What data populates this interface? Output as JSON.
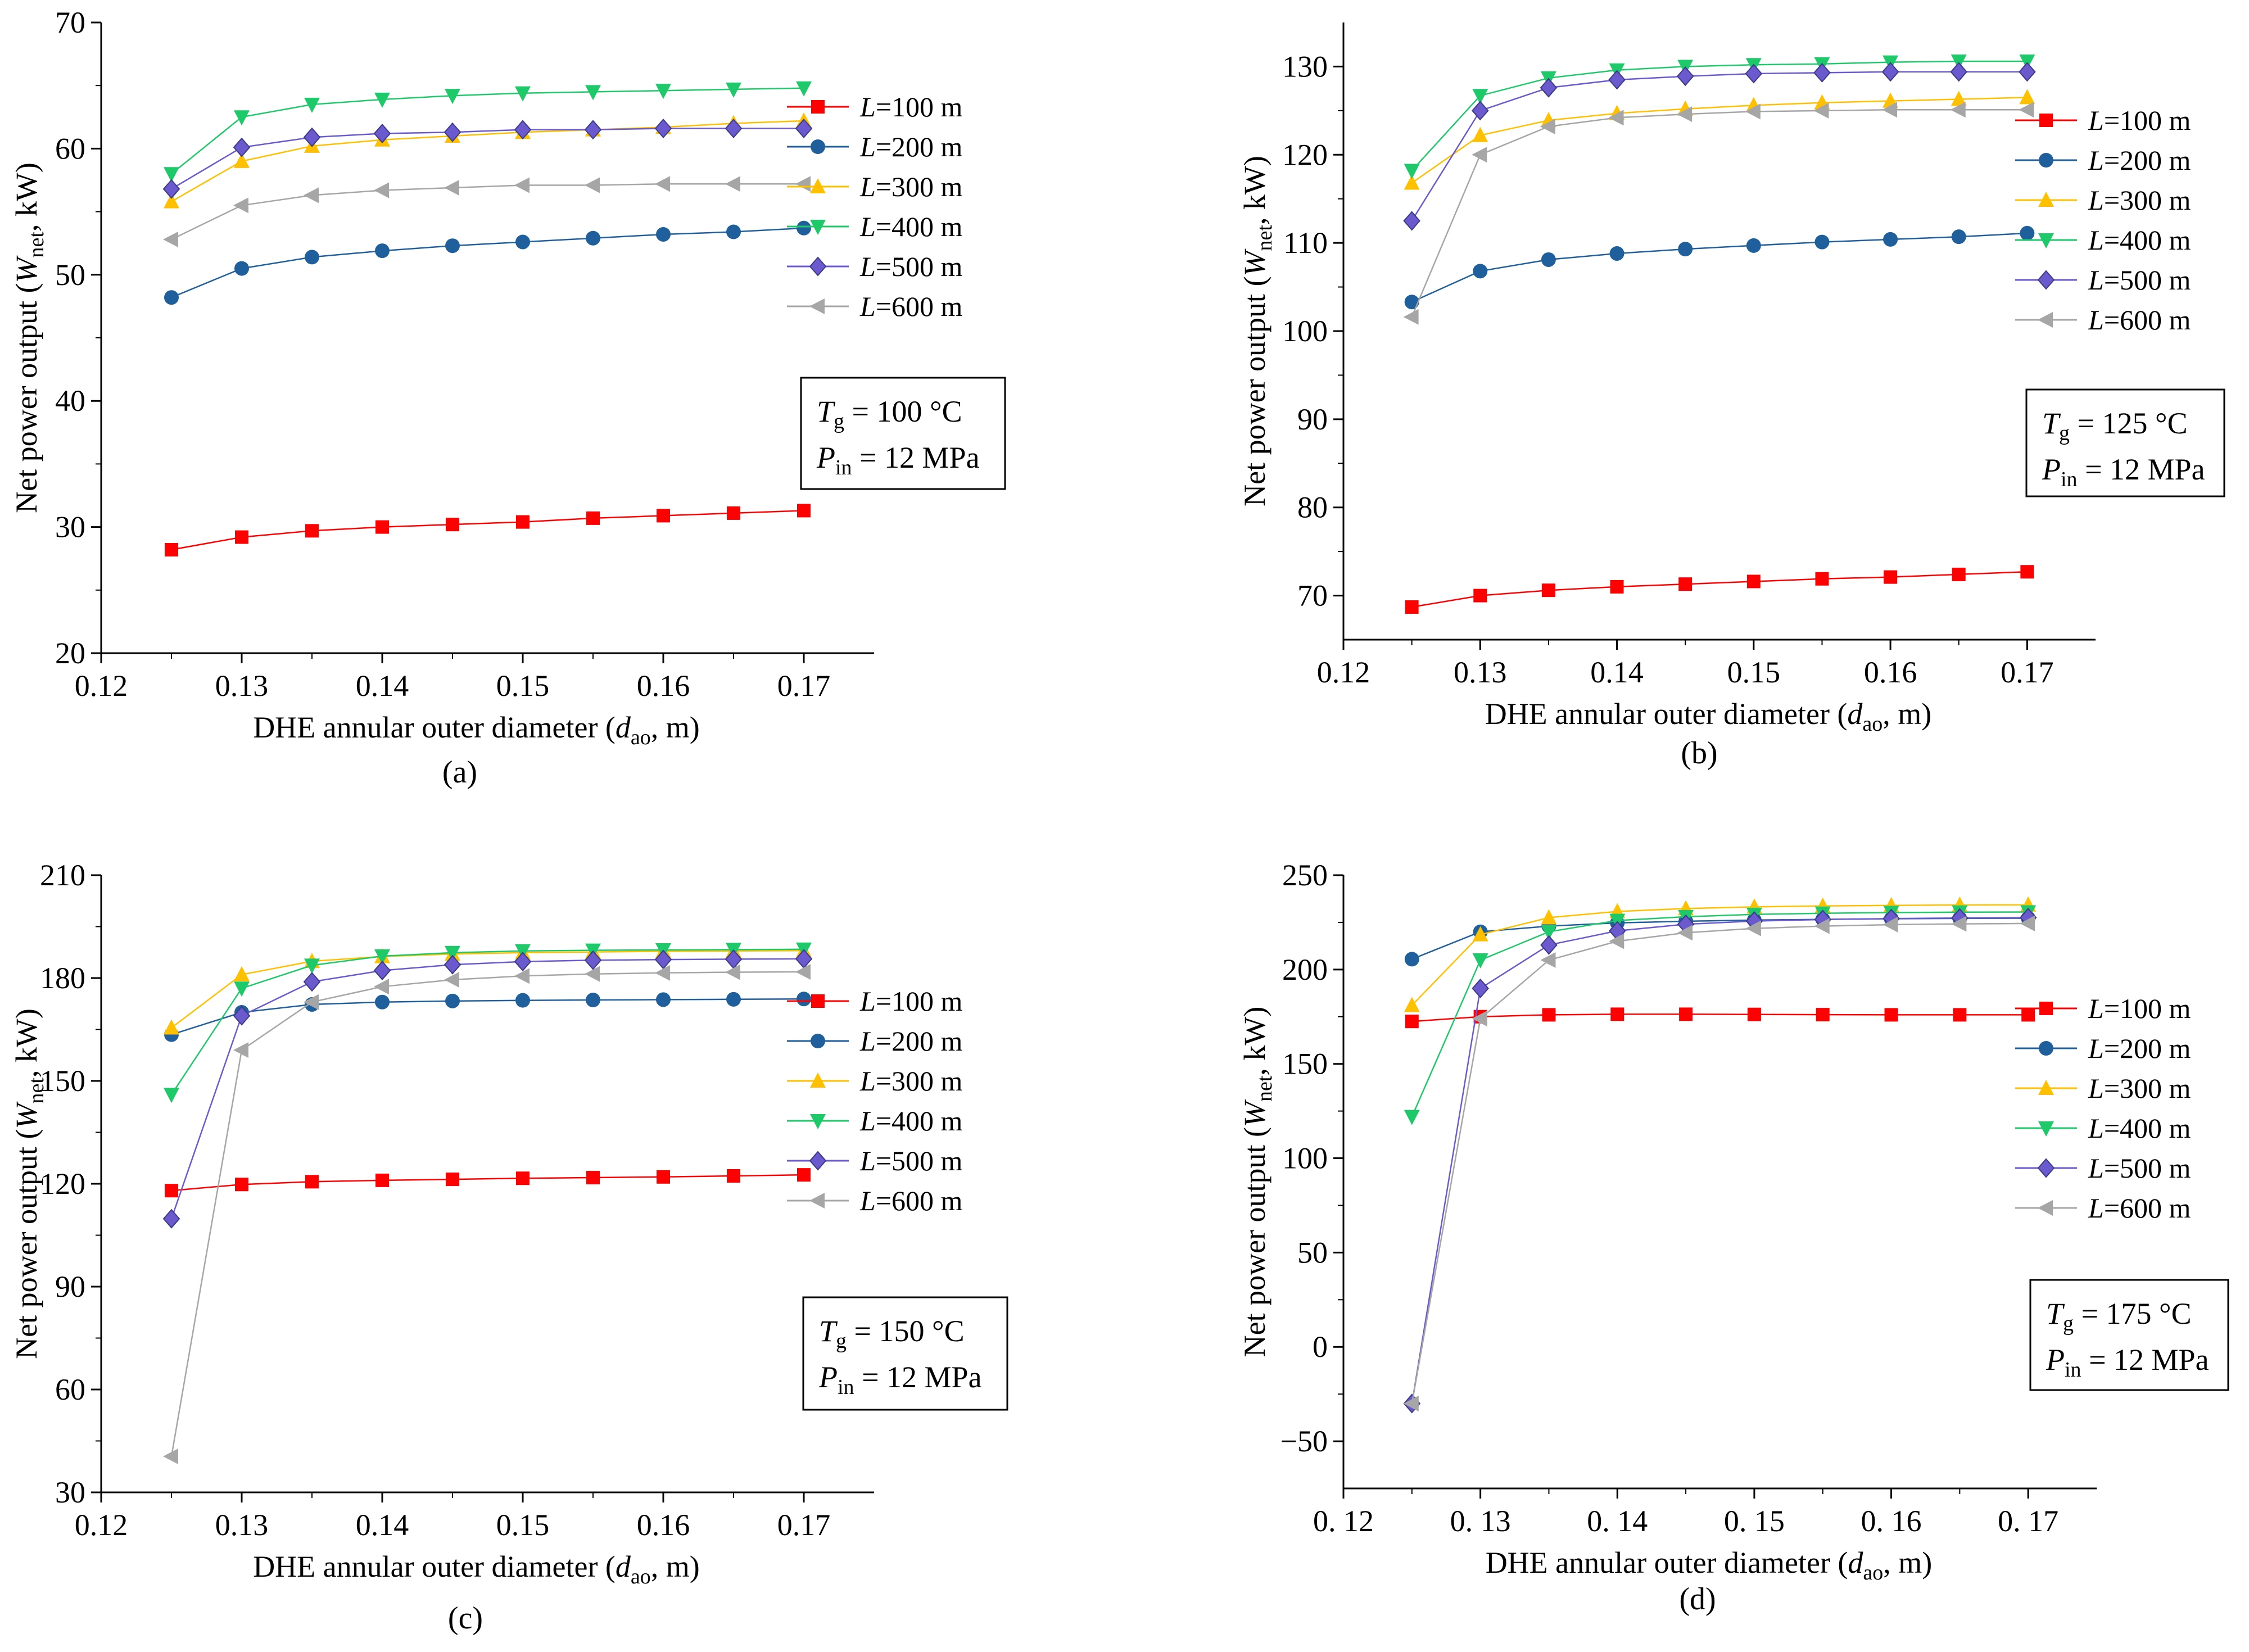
{
  "figure": {
    "panel_labels": [
      "(a)",
      "(b)",
      "(c)",
      "(d)"
    ]
  },
  "legend_labels": [
    {
      "var": "L",
      "rest": "=100 m"
    },
    {
      "var": "L",
      "rest": "=200 m"
    },
    {
      "var": "L",
      "rest": "=300 m"
    },
    {
      "var": "L",
      "rest": "=400 m"
    },
    {
      "var": "L",
      "rest": "=500 m"
    },
    {
      "var": "L",
      "rest": "=600 m"
    }
  ],
  "axis_titles": {
    "x": {
      "pre": "DHE annular outer diameter (",
      "var": "d",
      "sub": "ao",
      "post": ", m)"
    },
    "y": {
      "pre": "Net power output (",
      "var": "W",
      "sub": "net",
      "post": ", kW)"
    }
  },
  "chart_data": [
    {
      "type": "line",
      "panel": "(a)",
      "title": "",
      "condition": {
        "tg": {
          "var": "T",
          "sub": "g",
          "text": " = 100 °C"
        },
        "pin": {
          "var": "P",
          "sub": "in",
          "text": " = 12 MPa"
        }
      },
      "xlim": [
        0.12,
        0.175
      ],
      "ylim": [
        20,
        70
      ],
      "xticks": [
        0.12,
        0.13,
        0.14,
        0.15,
        0.16,
        0.17
      ],
      "xtick_labels": [
        "0.12",
        "0.13",
        "0.14",
        "0.15",
        "0.16",
        "0.17"
      ],
      "yticks": [
        20,
        30,
        40,
        50,
        60,
        70
      ],
      "ytick_labels": [
        "20",
        "30",
        "40",
        "50",
        "60",
        "70"
      ],
      "x": [
        0.125,
        0.13,
        0.135,
        0.14,
        0.145,
        0.15,
        0.155,
        0.16,
        0.165,
        0.17
      ],
      "series": [
        {
          "name": "L=100 m",
          "color": "#ff0000",
          "marker": "square",
          "values": [
            28.2,
            29.2,
            29.7,
            30.0,
            30.2,
            30.4,
            30.7,
            30.9,
            31.1,
            31.3
          ]
        },
        {
          "name": "L=200 m",
          "color": "#1f5f9c",
          "marker": "circle",
          "values": [
            48.2,
            50.5,
            51.4,
            51.9,
            52.3,
            52.6,
            52.9,
            53.2,
            53.4,
            53.7
          ]
        },
        {
          "name": "L=300 m",
          "color": "#ffc000",
          "marker": "triangle-up",
          "values": [
            55.8,
            59.0,
            60.2,
            60.7,
            61.0,
            61.3,
            61.5,
            61.7,
            62.0,
            62.2
          ]
        },
        {
          "name": "L=400 m",
          "color": "#1ec96a",
          "marker": "triangle-down",
          "values": [
            58.0,
            62.5,
            63.5,
            63.9,
            64.2,
            64.4,
            64.5,
            64.6,
            64.7,
            64.8
          ]
        },
        {
          "name": "L=500 m",
          "color": "#6a5acd",
          "marker": "diamond",
          "values": [
            56.8,
            60.1,
            60.9,
            61.2,
            61.3,
            61.5,
            61.5,
            61.6,
            61.6,
            61.6
          ]
        },
        {
          "name": "L=600 m",
          "color": "#a6a6a6",
          "marker": "triangle-left",
          "values": [
            52.8,
            55.5,
            56.3,
            56.7,
            56.9,
            57.1,
            57.1,
            57.2,
            57.2,
            57.2
          ]
        }
      ]
    },
    {
      "type": "line",
      "panel": "(b)",
      "title": "",
      "condition": {
        "tg": {
          "var": "T",
          "sub": "g",
          "text": " = 125 °C"
        },
        "pin": {
          "var": "P",
          "sub": "in",
          "text": " = 12 MPa"
        }
      },
      "xlim": [
        0.12,
        0.175
      ],
      "ylim": [
        65,
        135
      ],
      "xticks": [
        0.12,
        0.13,
        0.14,
        0.15,
        0.16,
        0.17
      ],
      "xtick_labels": [
        "0.12",
        "0.13",
        "0.14",
        "0.15",
        "0.16",
        "0.17"
      ],
      "yticks": [
        70,
        80,
        90,
        100,
        110,
        120,
        130
      ],
      "ytick_labels": [
        "70",
        "80",
        "90",
        "100",
        "110",
        "120",
        "130"
      ],
      "x": [
        0.125,
        0.13,
        0.135,
        0.14,
        0.145,
        0.15,
        0.155,
        0.16,
        0.165,
        0.17
      ],
      "series": [
        {
          "name": "L=100 m",
          "color": "#ff0000",
          "marker": "square",
          "values": [
            68.7,
            70.0,
            70.6,
            71.0,
            71.3,
            71.6,
            71.9,
            72.1,
            72.4,
            72.7
          ]
        },
        {
          "name": "L=200 m",
          "color": "#1f5f9c",
          "marker": "circle",
          "values": [
            103.3,
            106.8,
            108.1,
            108.8,
            109.3,
            109.7,
            110.1,
            110.4,
            110.7,
            111.1
          ]
        },
        {
          "name": "L=300 m",
          "color": "#ffc000",
          "marker": "triangle-up",
          "values": [
            116.8,
            122.2,
            123.9,
            124.7,
            125.2,
            125.6,
            125.9,
            126.1,
            126.3,
            126.5
          ]
        },
        {
          "name": "L=400 m",
          "color": "#1ec96a",
          "marker": "triangle-down",
          "values": [
            118.2,
            126.7,
            128.7,
            129.6,
            130.0,
            130.2,
            130.3,
            130.5,
            130.6,
            130.6
          ]
        },
        {
          "name": "L=500 m",
          "color": "#6a5acd",
          "marker": "diamond",
          "values": [
            112.5,
            125.0,
            127.6,
            128.5,
            128.9,
            129.2,
            129.3,
            129.4,
            129.4,
            129.4
          ]
        },
        {
          "name": "L=600 m",
          "color": "#a6a6a6",
          "marker": "triangle-left",
          "values": [
            101.6,
            120.0,
            123.2,
            124.2,
            124.6,
            124.9,
            125.0,
            125.1,
            125.1,
            125.1
          ]
        }
      ]
    },
    {
      "type": "line",
      "panel": "(c)",
      "title": "",
      "condition": {
        "tg": {
          "var": "T",
          "sub": "g",
          "text": " = 150 °C"
        },
        "pin": {
          "var": "P",
          "sub": "in",
          "text": " = 12 MPa"
        }
      },
      "xlim": [
        0.12,
        0.175
      ],
      "ylim": [
        30,
        210
      ],
      "xticks": [
        0.12,
        0.13,
        0.14,
        0.15,
        0.16,
        0.17
      ],
      "xtick_labels": [
        "0.12",
        "0.13",
        "0.14",
        "0.15",
        "0.16",
        "0.17"
      ],
      "yticks": [
        30,
        60,
        90,
        120,
        150,
        180,
        210
      ],
      "ytick_labels": [
        "30",
        "60",
        "90",
        "120",
        "150",
        "180",
        "210"
      ],
      "x": [
        0.125,
        0.13,
        0.135,
        0.14,
        0.145,
        0.15,
        0.155,
        0.16,
        0.165,
        0.17
      ],
      "series": [
        {
          "name": "L=100 m",
          "color": "#ff0000",
          "marker": "square",
          "values": [
            118.0,
            119.8,
            120.6,
            121.0,
            121.3,
            121.6,
            121.8,
            122.0,
            122.3,
            122.6
          ]
        },
        {
          "name": "L=200 m",
          "color": "#1f5f9c",
          "marker": "circle",
          "values": [
            163.5,
            170.0,
            172.3,
            173.0,
            173.3,
            173.5,
            173.6,
            173.7,
            173.8,
            173.9
          ]
        },
        {
          "name": "L=300 m",
          "color": "#ffc000",
          "marker": "triangle-up",
          "values": [
            165.5,
            181.0,
            184.9,
            186.3,
            187.0,
            187.4,
            187.6,
            187.8,
            187.9,
            188.0
          ]
        },
        {
          "name": "L=400 m",
          "color": "#1ec96a",
          "marker": "triangle-down",
          "values": [
            146.0,
            177.0,
            183.7,
            186.4,
            187.4,
            187.9,
            188.1,
            188.2,
            188.3,
            188.4
          ]
        },
        {
          "name": "L=500 m",
          "color": "#6a5acd",
          "marker": "diamond",
          "values": [
            109.8,
            169.0,
            178.9,
            182.2,
            183.9,
            184.8,
            185.2,
            185.4,
            185.5,
            185.6
          ]
        },
        {
          "name": "L=600 m",
          "color": "#a6a6a6",
          "marker": "triangle-left",
          "values": [
            40.5,
            159.0,
            173.0,
            177.5,
            179.5,
            180.6,
            181.2,
            181.5,
            181.7,
            181.8
          ]
        }
      ]
    },
    {
      "type": "line",
      "panel": "(d)",
      "title": "",
      "condition": {
        "tg": {
          "var": "T",
          "sub": "g",
          "text": " = 175 °C"
        },
        "pin": {
          "var": "P",
          "sub": "in",
          "text": " = 12 MPa"
        }
      },
      "xlim": [
        0.12,
        0.175
      ],
      "ylim": [
        -75,
        250
      ],
      "xticks": [
        0.12,
        0.13,
        0.14,
        0.15,
        0.16,
        0.17
      ],
      "xtick_labels": [
        "0. 12",
        "0. 13",
        "0. 14",
        "0. 15",
        "0. 16",
        "0. 17"
      ],
      "yticks": [
        -50,
        0,
        50,
        100,
        150,
        200,
        250
      ],
      "ytick_labels": [
        "−50",
        "0",
        "50",
        "100",
        "150",
        "200",
        "250"
      ],
      "x": [
        0.125,
        0.13,
        0.135,
        0.14,
        0.145,
        0.15,
        0.155,
        0.16,
        0.165,
        0.17
      ],
      "series": [
        {
          "name": "L=100 m",
          "color": "#ff0000",
          "marker": "square",
          "values": [
            172.5,
            175.0,
            176.0,
            176.3,
            176.3,
            176.2,
            176.1,
            176.0,
            176.0,
            176.0
          ]
        },
        {
          "name": "L=200 m",
          "color": "#1f5f9c",
          "marker": "circle",
          "values": [
            205.5,
            220.0,
            223.0,
            224.7,
            225.6,
            226.2,
            226.6,
            226.9,
            227.1,
            227.2
          ]
        },
        {
          "name": "L=300 m",
          "color": "#ffc000",
          "marker": "triangle-up",
          "values": [
            181.0,
            218.5,
            227.5,
            230.8,
            232.3,
            233.2,
            233.7,
            234.0,
            234.2,
            234.3
          ]
        },
        {
          "name": "L=400 m",
          "color": "#1ec96a",
          "marker": "triangle-down",
          "values": [
            122.0,
            205.0,
            220.0,
            226.0,
            228.0,
            229.2,
            229.8,
            230.2,
            230.4,
            230.5
          ]
        },
        {
          "name": "L=500 m",
          "color": "#6a5acd",
          "marker": "diamond",
          "values": [
            -30.0,
            190.0,
            213.0,
            220.5,
            224.0,
            225.7,
            226.5,
            227.0,
            227.3,
            227.5
          ]
        },
        {
          "name": "L=600 m",
          "color": "#a6a6a6",
          "marker": "triangle-left",
          "values": [
            -30.0,
            174.0,
            205.0,
            215.0,
            219.5,
            221.8,
            223.0,
            223.8,
            224.2,
            224.4
          ]
        }
      ]
    }
  ]
}
